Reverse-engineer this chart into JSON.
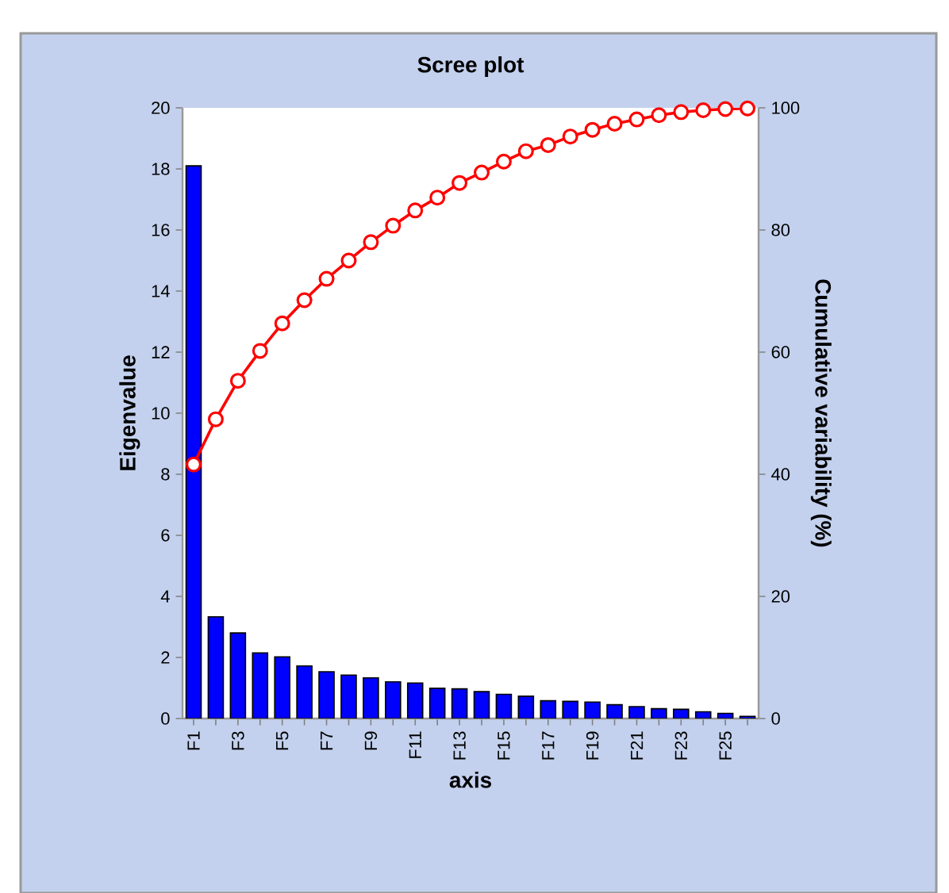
{
  "chart_data": {
    "type": "bar",
    "title": "Scree plot",
    "xlabel": "axis",
    "ylabel": "Eigenvalue",
    "y2label": "Cumulative variability (%)",
    "categories": [
      "F1",
      null,
      "F3",
      null,
      "F5",
      null,
      "F7",
      null,
      "F9",
      null,
      "F11",
      null,
      "F13",
      null,
      "F15",
      null,
      "F17",
      null,
      "F19",
      null,
      "F21",
      null,
      "F23",
      null,
      "F25",
      null
    ],
    "series": [
      {
        "color": "#0000ff",
        "values": [
          18.1,
          3.33,
          2.8,
          2.15,
          2.02,
          1.72,
          1.53,
          1.42,
          1.33,
          1.2,
          1.16,
          0.99,
          0.97,
          0.88,
          0.79,
          0.73,
          0.58,
          0.56,
          0.54,
          0.45,
          0.39,
          0.32,
          0.3,
          0.22,
          0.17,
          0.07
        ]
      },
      {
        "type": "line",
        "axis": "y2",
        "color": "#ff0000",
        "marker": "circle",
        "values": [
          41.6,
          49.0,
          55.3,
          60.2,
          64.7,
          68.5,
          72.0,
          75.0,
          78.0,
          80.7,
          83.2,
          85.3,
          87.7,
          89.4,
          91.2,
          92.9,
          93.9,
          95.3,
          96.4,
          97.4,
          98.1,
          98.8,
          99.3,
          99.6,
          99.8,
          99.9
        ]
      }
    ],
    "ylim": [
      0,
      20
    ],
    "yticks": [
      0,
      2,
      4,
      6,
      8,
      10,
      12,
      14,
      16,
      18,
      20
    ],
    "y2lim": [
      0,
      100
    ],
    "y2ticks": [
      0,
      20,
      40,
      60,
      80,
      100
    ]
  }
}
